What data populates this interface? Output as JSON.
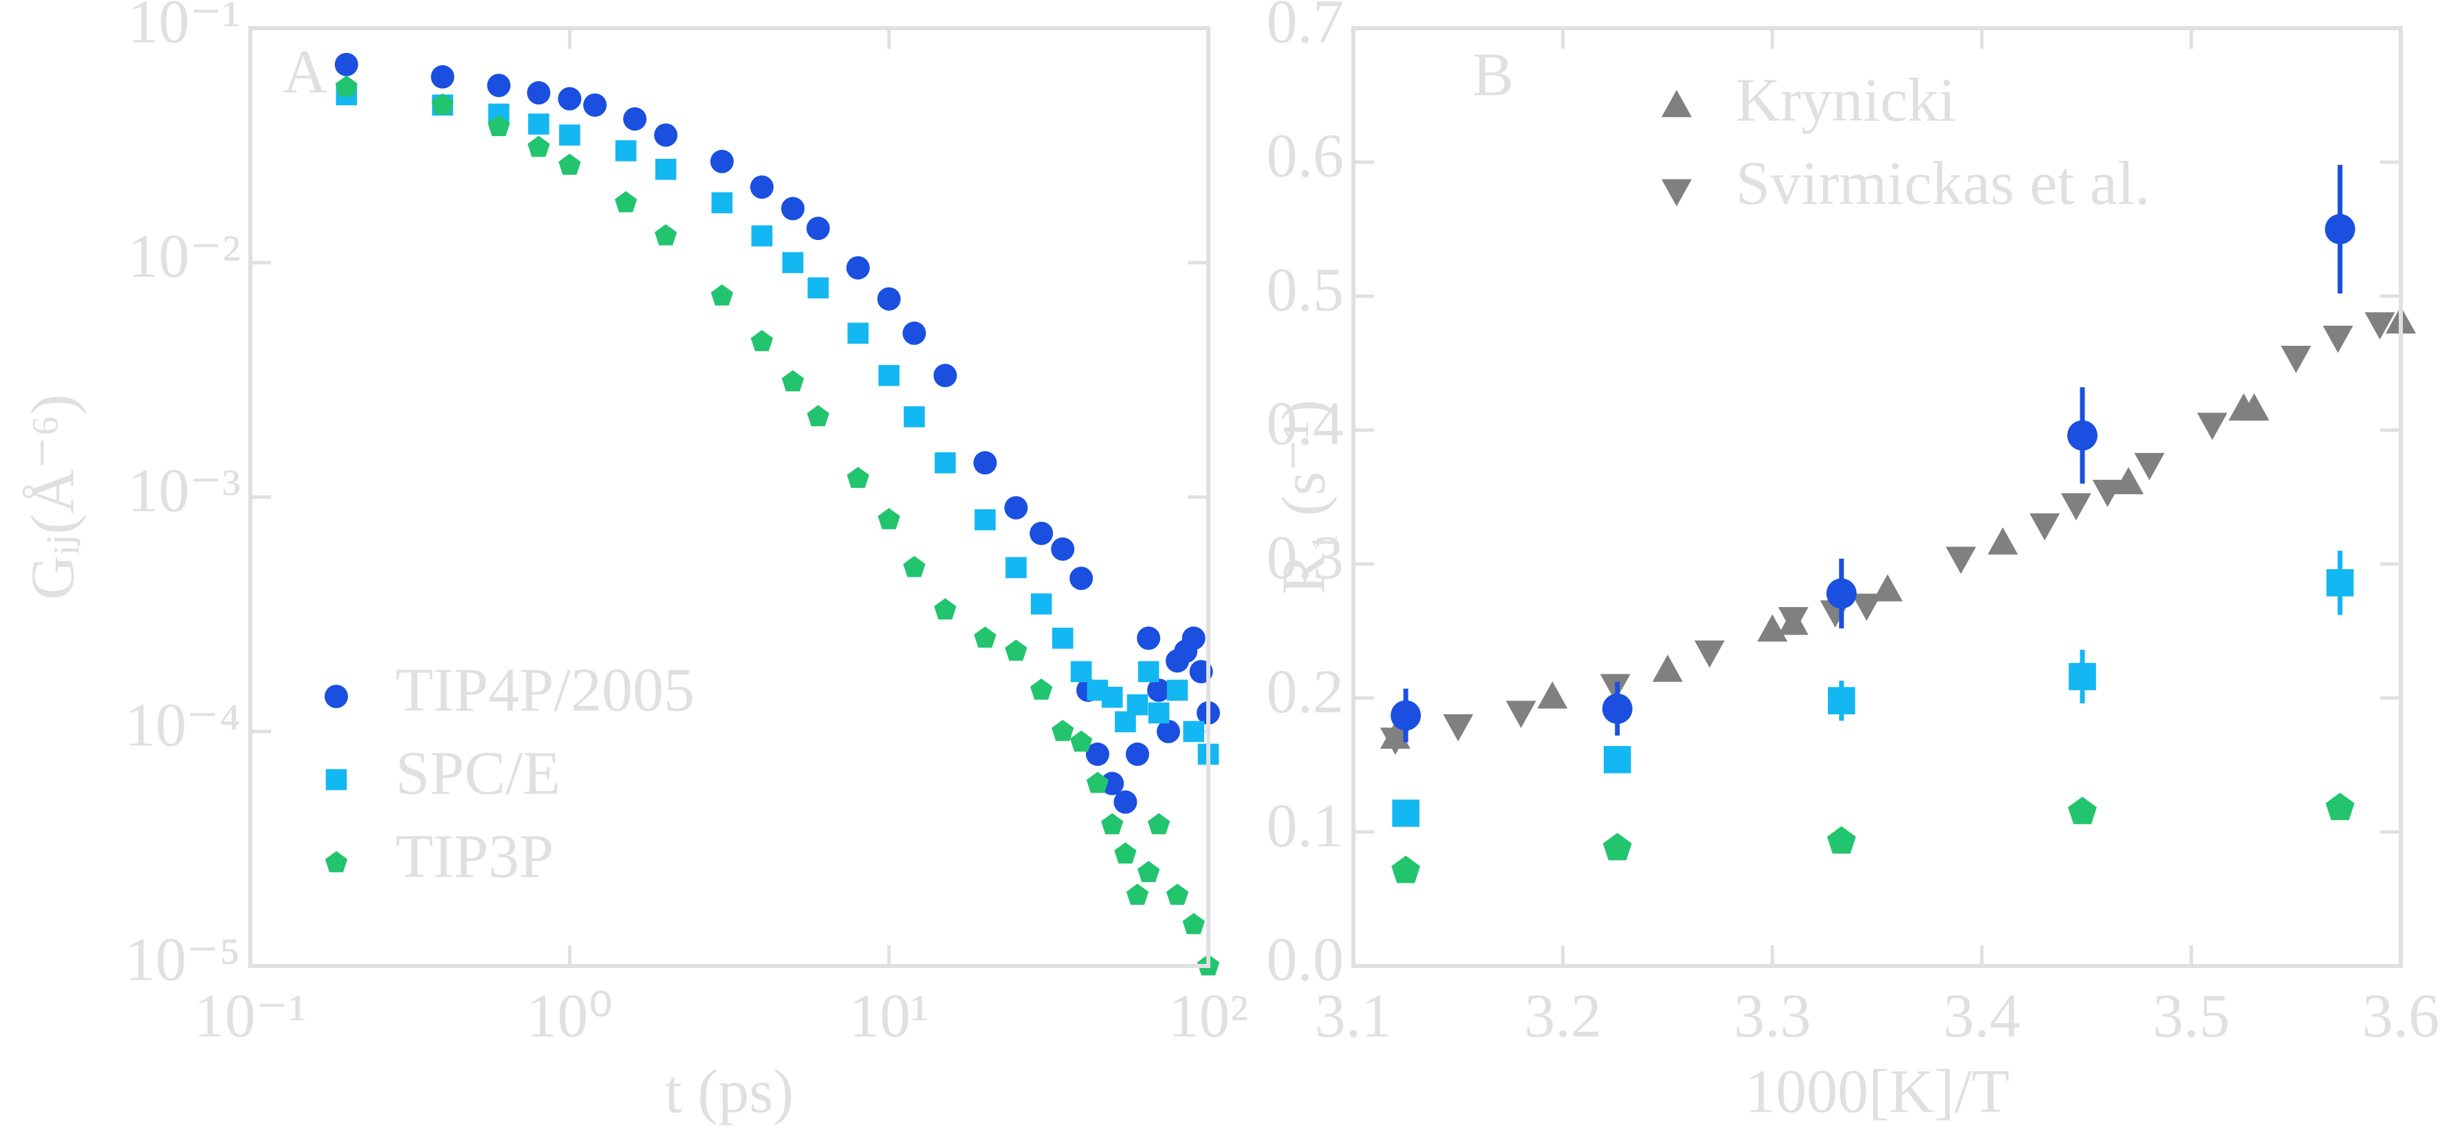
{
  "chart_data": [
    {
      "type": "scatter",
      "panel_label": "A",
      "xlabel": "t (ps)",
      "ylabel": "Gᵢⱼ(Å⁻⁶)",
      "xscale": "log",
      "yscale": "log",
      "xlim": [
        0.1,
        100
      ],
      "ylim": [
        1e-05,
        0.1
      ],
      "xticks": [
        {
          "value": 0.1,
          "label": "10⁻¹"
        },
        {
          "value": 1,
          "label": "10⁰"
        },
        {
          "value": 10,
          "label": "10¹"
        },
        {
          "value": 100,
          "label": "10²"
        }
      ],
      "yticks": [
        {
          "value": 1e-05,
          "label": "10⁻⁵"
        },
        {
          "value": 0.0001,
          "label": "10⁻⁴"
        },
        {
          "value": 0.001,
          "label": "10⁻³"
        },
        {
          "value": 0.01,
          "label": "10⁻²"
        },
        {
          "value": 0.1,
          "label": "10⁻¹"
        }
      ],
      "legend": "lower left",
      "series": [
        {
          "name": "TIP4P/2005",
          "color": "#1a4fe0",
          "marker": "circle",
          "x": [
            0.2,
            0.4,
            0.6,
            0.8,
            1,
            1.2,
            1.6,
            2,
            3,
            4,
            5,
            6,
            8,
            10,
            12,
            15,
            20,
            25,
            30,
            35,
            40,
            42,
            45,
            50,
            55,
            60,
            65,
            70,
            75,
            80,
            85,
            90,
            95,
            100
          ],
          "values": [
            0.07,
            0.062,
            0.057,
            0.053,
            0.05,
            0.047,
            0.041,
            0.035,
            0.027,
            0.021,
            0.017,
            0.014,
            0.0095,
            0.007,
            0.005,
            0.0033,
            0.0014,
            0.0009,
            0.0007,
            0.0006,
            0.00045,
            0.00015,
            8e-05,
            6e-05,
            5e-05,
            8e-05,
            0.00025,
            0.00015,
            0.0001,
            0.0002,
            0.00022,
            0.00025,
            0.00018,
            0.00012
          ]
        },
        {
          "name": "SPC/E",
          "color": "#13b7f2",
          "marker": "square",
          "x": [
            0.2,
            0.4,
            0.6,
            0.8,
            1,
            1.5,
            2,
            3,
            4,
            5,
            6,
            8,
            10,
            12,
            15,
            20,
            25,
            30,
            35,
            40,
            45,
            50,
            55,
            60,
            65,
            70,
            80,
            90,
            100
          ],
          "values": [
            0.052,
            0.047,
            0.043,
            0.039,
            0.035,
            0.03,
            0.025,
            0.018,
            0.013,
            0.01,
            0.0078,
            0.005,
            0.0033,
            0.0022,
            0.0014,
            0.0008,
            0.0005,
            0.00035,
            0.00025,
            0.00018,
            0.00015,
            0.00014,
            0.00011,
            0.00013,
            0.00018,
            0.00012,
            0.00015,
            0.0001,
            8e-05
          ]
        },
        {
          "name": "TIP3P",
          "color": "#22c46e",
          "marker": "pentagon",
          "x": [
            0.2,
            0.4,
            0.6,
            0.8,
            1,
            1.5,
            2,
            3,
            4,
            5,
            6,
            8,
            10,
            12,
            15,
            20,
            25,
            30,
            35,
            40,
            45,
            50,
            55,
            60,
            65,
            70,
            80,
            90,
            100
          ],
          "values": [
            0.056,
            0.047,
            0.038,
            0.031,
            0.026,
            0.018,
            0.013,
            0.0072,
            0.0046,
            0.0031,
            0.0022,
            0.0012,
            0.0008,
            0.0005,
            0.00033,
            0.00025,
            0.00022,
            0.00015,
            0.0001,
            9e-05,
            6e-05,
            4e-05,
            3e-05,
            2e-05,
            2.5e-05,
            4e-05,
            2e-05,
            1.5e-05,
            1e-05
          ]
        }
      ]
    },
    {
      "type": "scatter",
      "panel_label": "B",
      "xlabel": "1000[K]/T",
      "ylabel": "R₁ (s⁻¹)",
      "xlim": [
        3.1,
        3.6
      ],
      "ylim": [
        0,
        0.7
      ],
      "xticks": [
        3.1,
        3.2,
        3.3,
        3.4,
        3.5,
        3.6
      ],
      "yticks": [
        {
          "value": 0,
          "label": "0.0"
        },
        0.1,
        0.2,
        0.3,
        0.4,
        0.5,
        0.6,
        0.7
      ],
      "legend": "upper left",
      "series": [
        {
          "name": "Krynicki",
          "color": "#808080",
          "marker": "triangle-up",
          "x": [
            3.12,
            3.195,
            3.25,
            3.3,
            3.31,
            3.355,
            3.41,
            3.47,
            3.525,
            3.53,
            3.6
          ],
          "values": [
            0.17,
            0.2,
            0.22,
            0.25,
            0.255,
            0.28,
            0.315,
            0.36,
            0.415,
            0.415,
            0.48
          ]
        },
        {
          "name": "Svirmickas et al.",
          "color": "#808080",
          "marker": "triangle-down",
          "x": [
            3.12,
            3.15,
            3.18,
            3.225,
            3.27,
            3.31,
            3.33,
            3.345,
            3.39,
            3.43,
            3.445,
            3.46,
            3.48,
            3.51,
            3.55,
            3.57,
            3.59
          ],
          "values": [
            0.17,
            0.18,
            0.19,
            0.21,
            0.235,
            0.26,
            0.265,
            0.27,
            0.305,
            0.33,
            0.345,
            0.355,
            0.375,
            0.405,
            0.455,
            0.47,
            0.48
          ]
        },
        {
          "color": "#1a4fe0",
          "marker": "circle",
          "x": [
            3.125,
            3.226,
            3.333,
            3.448,
            3.571
          ],
          "values": [
            0.187,
            0.192,
            0.278,
            0.396,
            0.55
          ],
          "errors": [
            0.02,
            0.02,
            0.026,
            0.036,
            0.048
          ]
        },
        {
          "color": "#13b7f2",
          "marker": "square",
          "x": [
            3.125,
            3.226,
            3.333,
            3.448,
            3.571
          ],
          "values": [
            0.114,
            0.154,
            0.198,
            0.216,
            0.286
          ],
          "errors": [
            0.005,
            0.005,
            0.015,
            0.02,
            0.024
          ]
        },
        {
          "color": "#22c46e",
          "marker": "pentagon",
          "x": [
            3.125,
            3.226,
            3.333,
            3.448,
            3.571
          ],
          "values": [
            0.071,
            0.088,
            0.093,
            0.115,
            0.118
          ],
          "errors": [
            0.004,
            0.004,
            0.005,
            0.008,
            0.008
          ]
        }
      ]
    }
  ]
}
